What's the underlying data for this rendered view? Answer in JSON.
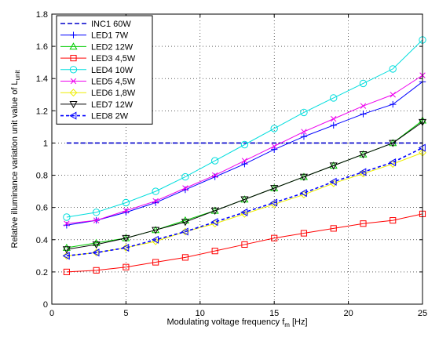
{
  "chart_data": {
    "type": "line",
    "title": "",
    "xlabel_main": "Modulating voltage frequency f",
    "xlabel_sub": "m",
    "xlabel_tail": " [Hz]",
    "ylabel_main": "Relative illuminance variation unit value of L",
    "ylabel_sub": "unit",
    "xlim": [
      0,
      25
    ],
    "ylim": [
      0,
      1.8
    ],
    "xticks": [
      0,
      5,
      10,
      15,
      20,
      25
    ],
    "xtick_labels": [
      "0",
      "5",
      "10",
      "15",
      "20",
      "25"
    ],
    "yticks": [
      0,
      0.2,
      0.4,
      0.6,
      0.8,
      1,
      1.2,
      1.4,
      1.6,
      1.8
    ],
    "ytick_labels": [
      "0",
      "0.2",
      "0.4",
      "0.6",
      "0.8",
      "1",
      "1.2",
      "1.4",
      "1.6",
      "1.8"
    ],
    "grid": true,
    "legend_position": "top-left",
    "x": [
      1,
      3,
      5,
      7,
      9,
      11,
      13,
      15,
      17,
      19,
      21,
      23,
      25
    ],
    "series": [
      {
        "name": "INC1 60W",
        "color": "#0000cc",
        "marker": "none",
        "dash": true,
        "values": [
          1,
          1,
          1,
          1,
          1,
          1,
          1,
          1,
          1,
          1,
          1,
          1,
          1
        ]
      },
      {
        "name": "LED1 7W",
        "color": "#0000ff",
        "marker": "plus",
        "dash": false,
        "values": [
          0.49,
          0.52,
          0.57,
          0.63,
          0.71,
          0.79,
          0.87,
          0.96,
          1.04,
          1.11,
          1.18,
          1.24,
          1.38
        ]
      },
      {
        "name": "LED2 12W",
        "color": "#00cc00",
        "marker": "triangle-up",
        "dash": false,
        "values": [
          0.35,
          0.38,
          0.41,
          0.46,
          0.52,
          0.58,
          0.65,
          0.72,
          0.79,
          0.86,
          0.93,
          1.0,
          1.14
        ]
      },
      {
        "name": "LED3 4,5W",
        "color": "#ff0000",
        "marker": "square",
        "dash": false,
        "values": [
          0.2,
          0.21,
          0.23,
          0.26,
          0.29,
          0.33,
          0.37,
          0.41,
          0.44,
          0.47,
          0.5,
          0.52,
          0.56
        ]
      },
      {
        "name": "LED4 10W",
        "color": "#00dddd",
        "marker": "circle",
        "dash": false,
        "values": [
          0.54,
          0.57,
          0.63,
          0.7,
          0.79,
          0.89,
          0.99,
          1.09,
          1.19,
          1.28,
          1.37,
          1.46,
          1.64
        ]
      },
      {
        "name": "LED5 4,5W",
        "color": "#ee00ee",
        "marker": "x",
        "dash": false,
        "values": [
          0.5,
          0.52,
          0.58,
          0.64,
          0.72,
          0.8,
          0.89,
          0.98,
          1.07,
          1.15,
          1.23,
          1.3,
          1.42
        ]
      },
      {
        "name": "LED6 1,8W",
        "color": "#eeee00",
        "marker": "diamond",
        "dash": false,
        "values": [
          0.3,
          0.32,
          0.35,
          0.39,
          0.45,
          0.5,
          0.56,
          0.62,
          0.68,
          0.75,
          0.81,
          0.87,
          0.94
        ]
      },
      {
        "name": "LED7 12W",
        "color": "#000000",
        "marker": "triangle-down",
        "dash": false,
        "values": [
          0.34,
          0.37,
          0.41,
          0.46,
          0.51,
          0.58,
          0.65,
          0.72,
          0.79,
          0.86,
          0.93,
          1.0,
          1.13
        ]
      },
      {
        "name": "LED8 2W",
        "color": "#0000ff",
        "marker": "triangle-left",
        "dash": true,
        "values": [
          0.3,
          0.32,
          0.35,
          0.4,
          0.45,
          0.51,
          0.57,
          0.63,
          0.69,
          0.76,
          0.82,
          0.88,
          0.97
        ]
      }
    ]
  }
}
